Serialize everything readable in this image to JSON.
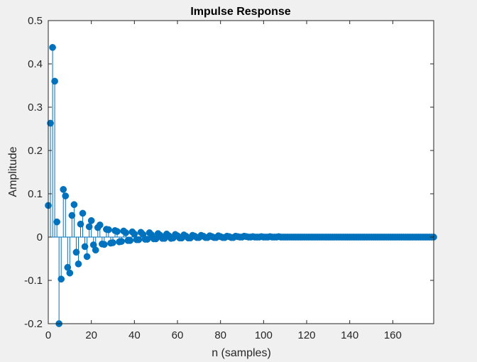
{
  "chart_data": {
    "type": "stem",
    "title": "Impulse Response",
    "xlabel": "n (samples)",
    "ylabel": "Amplitude",
    "xlim": [
      0,
      179
    ],
    "ylim": [
      -0.2,
      0.5
    ],
    "xticks": [
      0,
      20,
      40,
      60,
      80,
      100,
      120,
      140,
      160
    ],
    "yticks": [
      -0.2,
      -0.1,
      0,
      0.1,
      0.2,
      0.3,
      0.4,
      0.5
    ],
    "xtick_labels": [
      "0",
      "20",
      "40",
      "60",
      "80",
      "100",
      "120",
      "140",
      "160"
    ],
    "ytick_labels": [
      "-0.2",
      "-0.1",
      "0",
      "0.1",
      "0.2",
      "0.3",
      "0.4",
      "0.5"
    ],
    "grid": false,
    "color": "#0072BD",
    "series": [
      {
        "x_start": 0,
        "values": [
          0.073,
          0.263,
          0.438,
          0.36,
          0.035,
          -0.2,
          -0.097,
          0.11,
          0.095,
          -0.07,
          -0.083,
          0.05,
          0.075,
          -0.035,
          -0.062,
          0.03,
          0.055,
          -0.022,
          -0.045,
          0.024,
          0.038,
          -0.018,
          -0.03,
          0.022,
          0.028,
          -0.016,
          -0.017,
          0.018,
          0.017,
          -0.014,
          -0.013,
          0.015,
          0.013,
          -0.011,
          -0.01,
          0.014,
          0.01,
          -0.008,
          -0.008,
          0.012,
          0.007,
          -0.006,
          -0.006,
          0.011,
          0.006,
          -0.005,
          -0.005,
          0.01,
          0.005,
          -0.004,
          -0.004,
          0.008,
          0.004,
          -0.003,
          -0.003,
          0.007,
          0.003,
          -0.003,
          -0.002,
          0.006,
          0.003,
          -0.002,
          -0.002,
          0.005,
          0.002,
          -0.002,
          -0.002,
          0.004,
          0.002,
          -0.001,
          -0.001,
          0.004,
          0.002,
          -0.001,
          -0.001,
          0.003,
          0.001,
          -0.001,
          -0.001,
          0.003,
          0.001,
          -0.001,
          -0.001,
          0.002,
          0.001,
          -0.001,
          -0.001,
          0.002,
          0.001,
          0,
          0,
          0.002,
          0.001,
          0,
          0,
          0.001,
          0,
          0,
          0,
          0.001,
          0,
          0,
          0,
          0.001,
          0,
          0,
          0,
          0.001,
          0,
          0,
          0,
          0,
          0,
          0,
          0,
          0,
          0,
          0,
          0,
          0,
          0,
          0,
          0,
          0,
          0,
          0,
          0,
          0,
          0,
          0,
          0,
          0,
          0,
          0,
          0,
          0,
          0,
          0,
          0,
          0,
          0,
          0,
          0,
          0,
          0,
          0,
          0,
          0,
          0,
          0,
          0,
          0,
          0,
          0,
          0,
          0,
          0,
          0,
          0,
          0,
          0,
          0,
          0,
          0,
          0,
          0,
          0,
          0,
          0,
          0,
          0,
          0,
          0,
          0,
          0,
          0,
          0,
          0,
          0,
          0
        ]
      }
    ]
  }
}
